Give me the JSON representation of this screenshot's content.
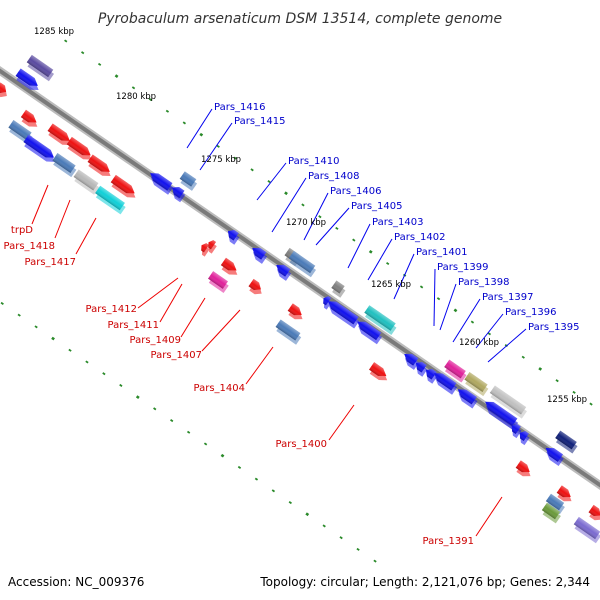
{
  "header": {
    "title": "Pyrobaculum arsenaticum DSM 13514, complete genome"
  },
  "footer": {
    "accession": "Accession: NC_009376",
    "topology": "Topology: circular; Length: 2,121,076 bp; Genes: 2,344"
  },
  "scale": {
    "kbp_labels": [
      "1285 kbp",
      "1280 kbp",
      "1275 kbp",
      "1270 kbp",
      "1265 kbp",
      "1260 kbp",
      "1255 kbp"
    ]
  },
  "genes": {
    "reverse_labels": [
      "Pars_1416",
      "Pars_1415",
      "Pars_1410",
      "Pars_1408",
      "Pars_1406",
      "Pars_1405",
      "Pars_1403",
      "Pars_1402",
      "Pars_1401",
      "Pars_1399",
      "Pars_1398",
      "Pars_1397",
      "Pars_1396",
      "Pars_1395"
    ],
    "forward_labels": [
      "trpD",
      "Pars_1418",
      "Pars_1417",
      "Pars_1412",
      "Pars_1411",
      "Pars_1409",
      "Pars_1407",
      "Pars_1404",
      "Pars_1400",
      "Pars_1391"
    ]
  },
  "colors": {
    "forward_strand": "#ee0000",
    "reverse_strand": "#0000ee",
    "backbone": "#808080",
    "tick": "#2a8a2a"
  }
}
